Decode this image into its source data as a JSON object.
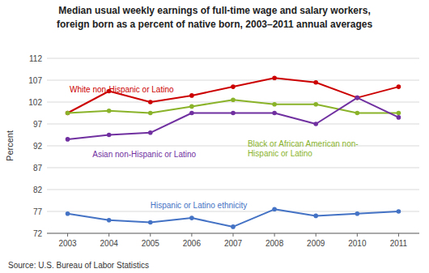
{
  "chart_data": {
    "type": "line",
    "title": "Median usual weekly earnings of full-time wage and salary workers,",
    "subtitle": "foreign born as a percent of native born, 2003–2011 annual averages",
    "y_label": "Percent",
    "source": "Source: U.S. Bureau of Labor Statistics",
    "x": [
      2003,
      2004,
      2005,
      2006,
      2007,
      2008,
      2009,
      2010,
      2011
    ],
    "xlim": [
      2002.5,
      2011.5
    ],
    "xticks": [
      2003,
      2004,
      2005,
      2006,
      2007,
      2008,
      2009,
      2010,
      2011
    ],
    "ylim": [
      72,
      112
    ],
    "yticks": [
      72,
      77,
      82,
      87,
      92,
      97,
      102,
      107,
      112
    ],
    "grid": true,
    "marker": "circle",
    "series": [
      {
        "color": "#cc0000",
        "values": [
          99.5,
          104.5,
          102.0,
          103.5,
          105.5,
          107.5,
          106.5,
          103.0,
          105.5
        ],
        "annotation": {
          "text": "White non-Hispanic or Latino",
          "x": 2003.05,
          "y": 105.8
        }
      },
      {
        "color": "#8ab32a",
        "values": [
          99.5,
          100.0,
          99.5,
          101.0,
          102.5,
          101.5,
          101.5,
          99.5,
          99.5
        ],
        "annotation": {
          "text": "Black or African American non-\nHispanic or Latino",
          "x": 2007.35,
          "y": 93.5
        }
      },
      {
        "color": "#7030a0",
        "values": [
          93.5,
          94.5,
          95.0,
          99.5,
          99.5,
          99.5,
          97.0,
          103.0,
          98.5
        ],
        "annotation": {
          "text": "Asian non-Hispanic or Latino",
          "x": 2003.6,
          "y": 91.0
        }
      },
      {
        "color": "#4472c4",
        "values": [
          76.5,
          75.0,
          74.5,
          75.5,
          73.5,
          77.5,
          76.0,
          76.5,
          77.0
        ],
        "annotation": {
          "text": "Hispanic or Latino ethnicity",
          "x": 2005.0,
          "y": 79.5
        }
      }
    ]
  }
}
